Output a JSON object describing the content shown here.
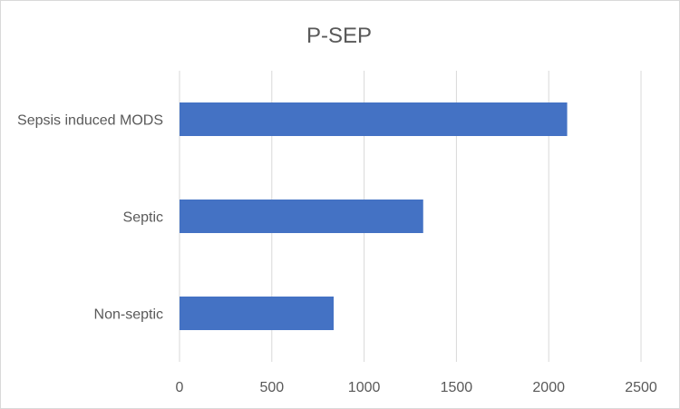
{
  "chart_data": {
    "type": "bar",
    "orientation": "horizontal",
    "title": "P-SEP",
    "categories": [
      "Sepsis induced MODS",
      "Septic",
      "Non-septic"
    ],
    "values": [
      2100,
      1320,
      835
    ],
    "xlim": [
      0,
      2500
    ],
    "xticks": [
      "0",
      "500",
      "1000",
      "1500",
      "2000",
      "2500"
    ],
    "grid": "vertical",
    "legend": "none",
    "colors": {
      "bar": "#4472c4",
      "grid": "#d9d9d9",
      "text": "#595959",
      "border": "#d9d9d9"
    }
  }
}
